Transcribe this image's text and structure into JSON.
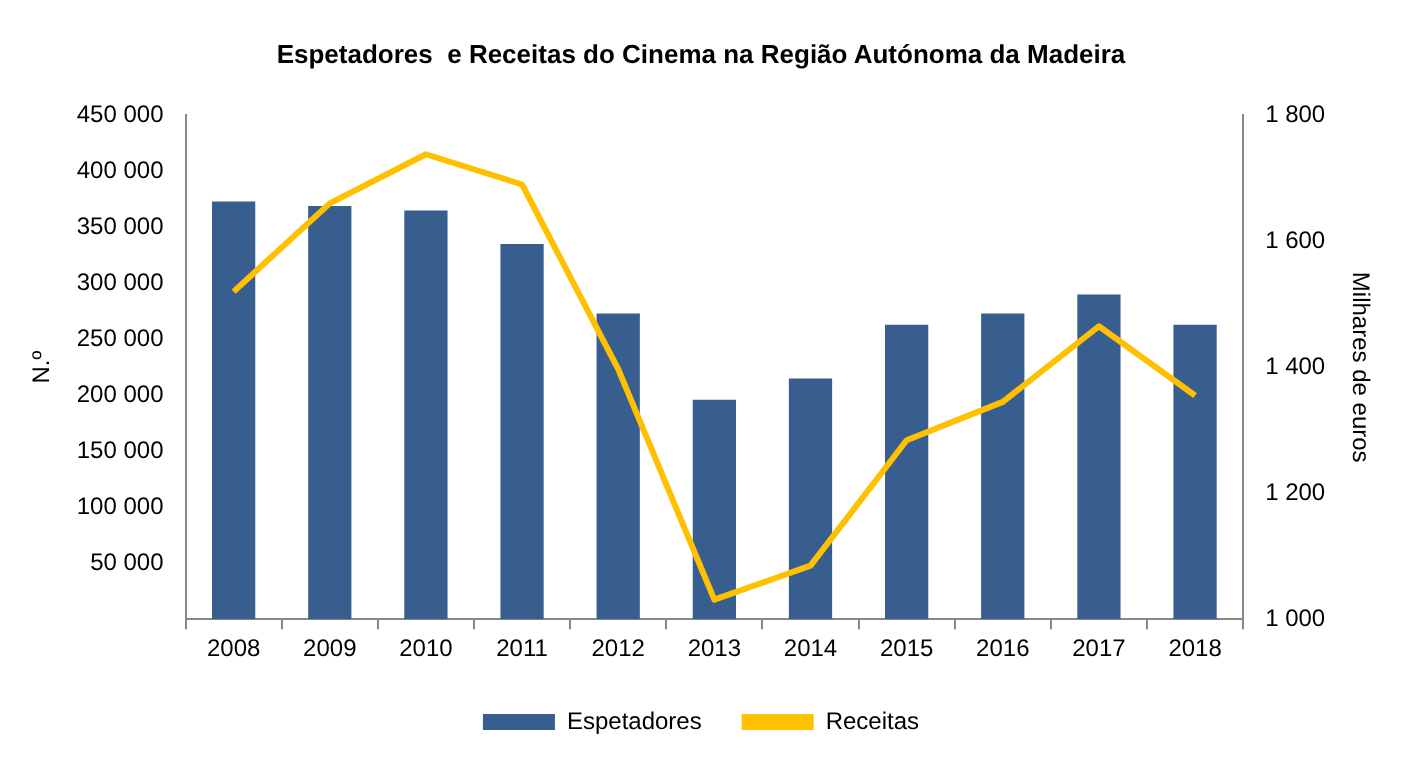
{
  "chart_data": {
    "type": "bar",
    "title": "Espetadores  e Receitas do Cinema na Região Autónoma da Madeira",
    "ylabel": "N.º",
    "y2label": "Milhares de euros",
    "categories": [
      "2008",
      "2009",
      "2010",
      "2011",
      "2012",
      "2013",
      "2014",
      "2015",
      "2016",
      "2017",
      "2018"
    ],
    "series": [
      {
        "name": "Espetadores",
        "color": "#375e8f",
        "values": [
          373000,
          369000,
          365000,
          335000,
          273000,
          196000,
          215000,
          263000,
          273000,
          290000,
          263000
        ]
      },
      {
        "name": "Receitas",
        "type": "line",
        "axis": "y2",
        "color": "#ffc000",
        "values": [
          1520,
          1660,
          1738,
          1690,
          1397,
          1031,
          1085,
          1284,
          1345,
          1465,
          1355
        ]
      }
    ],
    "ylim": [
      0,
      450000
    ],
    "yticks": [
      {
        "value": 0,
        "label": null
      },
      {
        "value": 50000,
        "label": "50 000"
      },
      {
        "value": 100000,
        "label": "100 000"
      },
      {
        "value": 150000,
        "label": "150 000"
      },
      {
        "value": 200000,
        "label": "200 000"
      },
      {
        "value": 250000,
        "label": "250 000"
      },
      {
        "value": 300000,
        "label": "300 000"
      },
      {
        "value": 350000,
        "label": "350 000"
      },
      {
        "value": 400000,
        "label": "400 000"
      },
      {
        "value": 450000,
        "label": "450 000"
      }
    ],
    "y2lim": [
      1000,
      1800
    ],
    "y2ticks": [
      {
        "value": 1000,
        "label": "1 000"
      },
      {
        "value": 1200,
        "label": "1 200"
      },
      {
        "value": 1400,
        "label": "1 400"
      },
      {
        "value": 1600,
        "label": "1 600"
      },
      {
        "value": 1800,
        "label": "1 800"
      }
    ],
    "grid": false,
    "legend": "bottom",
    "marker": "none",
    "line_style": "solid"
  }
}
